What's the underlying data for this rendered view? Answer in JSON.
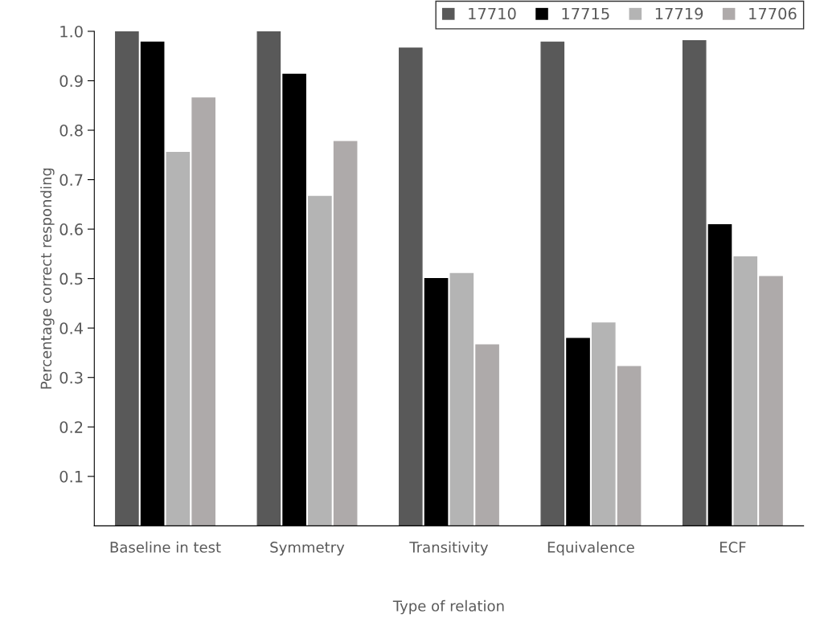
{
  "chart_data": {
    "type": "bar",
    "xlabel": "Type of relation",
    "ylabel": "Percentage correct responding",
    "categories": [
      "Baseline in test",
      "Symmetry",
      "Transitivity",
      "Equivalence",
      "ECF"
    ],
    "series": [
      {
        "name": "17710",
        "color": "#595959",
        "values": [
          1.0,
          1.0,
          0.966,
          0.978,
          0.981
        ]
      },
      {
        "name": "17715",
        "color": "#000000",
        "values": [
          0.978,
          0.913,
          0.5,
          0.379,
          0.609
        ]
      },
      {
        "name": "17719",
        "color": "#b4b4b4",
        "values": [
          0.755,
          0.666,
          0.51,
          0.41,
          0.544
        ]
      },
      {
        "name": "17706",
        "color": "#aeaaaa",
        "values": [
          0.865,
          0.777,
          0.366,
          0.322,
          0.504
        ]
      }
    ],
    "ylim": [
      0,
      1.0
    ],
    "yticks": [
      0.1,
      0.2,
      0.3,
      0.4,
      0.5,
      0.6,
      0.7,
      0.8,
      0.9,
      {
        "value": 1.0,
        "label": "1.0"
      }
    ],
    "grid": false,
    "legend": "top right"
  }
}
